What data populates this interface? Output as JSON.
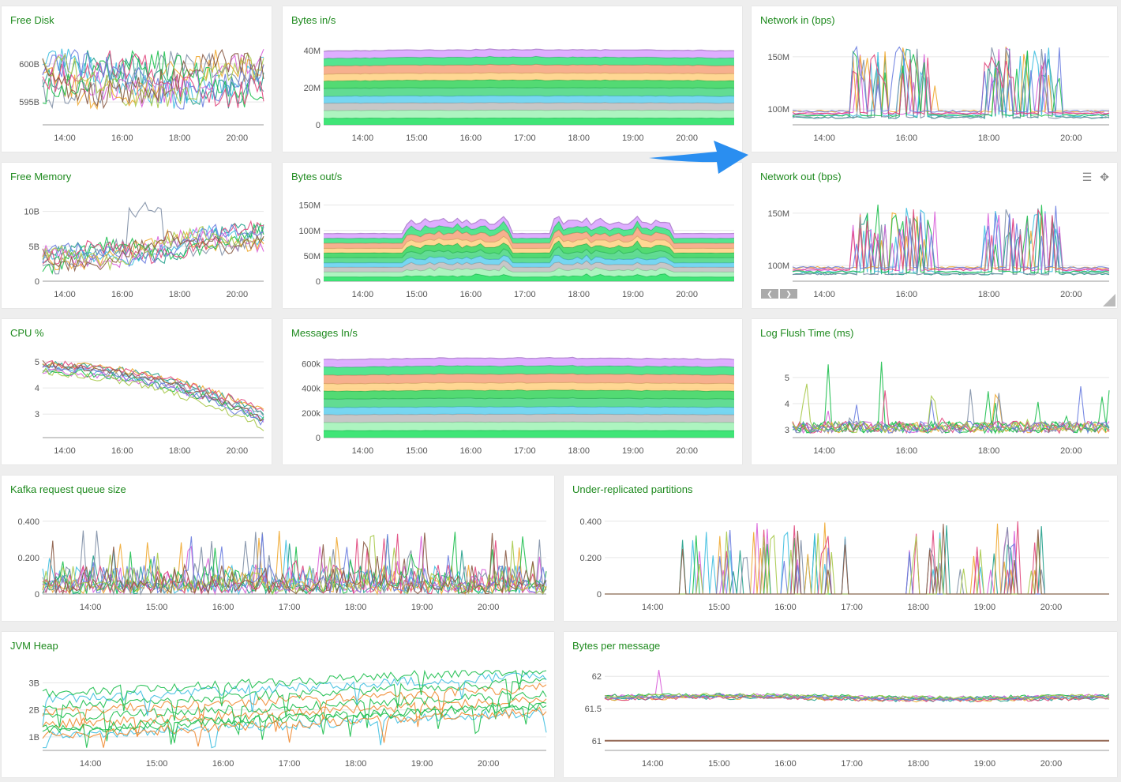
{
  "colors": {
    "title": "#1e8a1e",
    "arrow": "#2a8ef0",
    "grid": "#e6e6e6",
    "axis": "#bbbbbb",
    "palette": [
      "#1f9e89",
      "#3fbfe0",
      "#d95fd9",
      "#f0a830",
      "#7f8fa6",
      "#1dbf4e",
      "#e0467c",
      "#6a7de0",
      "#a7c94a",
      "#8a5a44"
    ],
    "stack": [
      "#1ee05f",
      "#9ff2b5",
      "#bdbdbd",
      "#5fcfef",
      "#47d680",
      "#35d35a",
      "#ffd080",
      "#f5a27a",
      "#36e07c",
      "#d8a0ff"
    ]
  },
  "icons": {
    "menu": "hamburger-menu-icon",
    "move": "move-icon",
    "arrow": "arrow-right-icon"
  },
  "chart_data": [
    {
      "id": "free-disk",
      "type": "line",
      "title": "Free Disk",
      "x_ticks": [
        "14:00",
        "16:00",
        "18:00",
        "20:00"
      ],
      "y_ticks": [
        "595B",
        "600B"
      ],
      "ylim": [
        592,
        603
      ],
      "grid": true,
      "series_count": 10,
      "pattern": "noisy"
    },
    {
      "id": "bytes-in",
      "type": "area",
      "title": "Bytes in/s",
      "x_ticks": [
        "14:00",
        "15:00",
        "16:00",
        "17:00",
        "18:00",
        "19:00",
        "20:00"
      ],
      "y_ticks": [
        "0",
        "20M",
        "40M"
      ],
      "ylim": [
        0,
        45
      ],
      "stack_total": 40,
      "bands": 10,
      "pattern": "flat",
      "grid": true
    },
    {
      "id": "network-in",
      "type": "line",
      "title": "Network in (bps)",
      "x_ticks": [
        "14:00",
        "16:00",
        "18:00",
        "20:00"
      ],
      "y_ticks": [
        "100M",
        "150M"
      ],
      "ylim": [
        85,
        165
      ],
      "series_count": 8,
      "pattern": "bursty",
      "grid": true
    },
    {
      "id": "free-memory",
      "type": "line",
      "title": "Free Memory",
      "x_ticks": [
        "14:00",
        "16:00",
        "18:00",
        "20:00"
      ],
      "y_ticks": [
        "0",
        "5B",
        "10B"
      ],
      "ylim": [
        0,
        12
      ],
      "series_count": 10,
      "pattern": "memory",
      "grid": true
    },
    {
      "id": "bytes-out",
      "type": "area",
      "title": "Bytes out/s",
      "x_ticks": [
        "14:00",
        "15:00",
        "16:00",
        "17:00",
        "18:00",
        "19:00",
        "20:00"
      ],
      "y_ticks": [
        "0",
        "50M",
        "100M",
        "150M"
      ],
      "ylim": [
        0,
        165
      ],
      "stack_total": 120,
      "bands": 10,
      "pattern": "spiky",
      "grid": true
    },
    {
      "id": "network-out",
      "type": "line",
      "title": "Network out (bps)",
      "x_ticks": [
        "14:00",
        "16:00",
        "18:00",
        "20:00"
      ],
      "y_ticks": [
        "100M",
        "150M"
      ],
      "ylim": [
        85,
        165
      ],
      "series_count": 8,
      "pattern": "bursty",
      "grid": true,
      "tools": true
    },
    {
      "id": "cpu",
      "type": "line",
      "title": "CPU %",
      "x_ticks": [
        "14:00",
        "16:00",
        "18:00",
        "20:00"
      ],
      "y_ticks": [
        "3",
        "4",
        "5"
      ],
      "ylim": [
        2.1,
        5.3
      ],
      "series_count": 10,
      "pattern": "cpu",
      "grid": true
    },
    {
      "id": "messages-in",
      "type": "area",
      "title": "Messages In/s",
      "x_ticks": [
        "14:00",
        "15:00",
        "16:00",
        "17:00",
        "18:00",
        "19:00",
        "20:00"
      ],
      "y_ticks": [
        "0",
        "200k",
        "400k",
        "600k"
      ],
      "ylim": [
        0,
        680
      ],
      "stack_total": 640,
      "bands": 10,
      "pattern": "flat",
      "grid": true
    },
    {
      "id": "log-flush",
      "type": "line",
      "title": "Log Flush Time (ms)",
      "x_ticks": [
        "14:00",
        "16:00",
        "18:00",
        "20:00"
      ],
      "y_ticks": [
        "3",
        "4",
        "5"
      ],
      "ylim": [
        2.7,
        5.9
      ],
      "series_count": 9,
      "pattern": "flush",
      "grid": true
    },
    {
      "id": "kafka-queue",
      "type": "line",
      "title": "Kafka request queue size",
      "x_ticks": [
        "14:00",
        "15:00",
        "16:00",
        "17:00",
        "18:00",
        "19:00",
        "20:00"
      ],
      "y_ticks": [
        "0",
        "0.200",
        "0.400"
      ],
      "ylim": [
        0,
        0.46
      ],
      "series_count": 10,
      "pattern": "queue",
      "grid": true
    },
    {
      "id": "under-replicated",
      "type": "line",
      "title": "Under-replicated partitions",
      "x_ticks": [
        "14:00",
        "15:00",
        "16:00",
        "17:00",
        "18:00",
        "19:00",
        "20:00"
      ],
      "y_ticks": [
        "0",
        "0.200",
        "0.400"
      ],
      "ylim": [
        0,
        0.46
      ],
      "series_count": 10,
      "pattern": "replicated",
      "grid": true
    },
    {
      "id": "jvm-heap",
      "type": "line",
      "title": "JVM Heap",
      "x_ticks": [
        "14:00",
        "15:00",
        "16:00",
        "17:00",
        "18:00",
        "19:00",
        "20:00"
      ],
      "y_ticks": [
        "1B",
        "2B",
        "3B"
      ],
      "ylim": [
        0.5,
        3.6
      ],
      "series_count": 10,
      "pattern": "heap",
      "grid": true
    },
    {
      "id": "bytes-per-message",
      "type": "line",
      "title": "Bytes per message",
      "x_ticks": [
        "14:00",
        "15:00",
        "16:00",
        "17:00",
        "18:00",
        "19:00",
        "20:00"
      ],
      "y_ticks": [
        "61",
        "61.5",
        "62"
      ],
      "ylim": [
        60.85,
        62.15
      ],
      "series_count": 10,
      "pattern": "bpm",
      "grid": true
    }
  ]
}
